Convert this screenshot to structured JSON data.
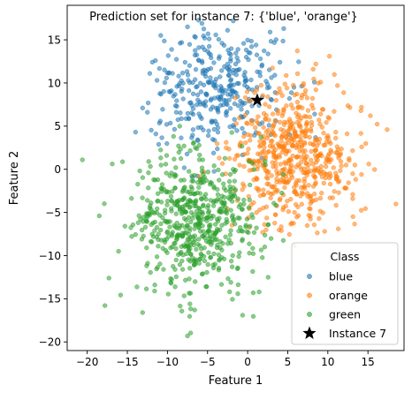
{
  "chart_data": {
    "type": "scatter",
    "title": "Prediction set for instance 7: {'blue', 'orange'}",
    "xlabel": "Feature 1",
    "ylabel": "Feature 2",
    "xlim": [
      -22.5,
      19.5
    ],
    "ylim": [
      -21,
      19
    ],
    "xticks": [
      -20,
      -15,
      -10,
      -5,
      0,
      5,
      10,
      15
    ],
    "yticks": [
      -20,
      -15,
      -10,
      -5,
      0,
      5,
      10,
      15
    ],
    "grid": false,
    "legend": {
      "title": "Class",
      "placement": "lower-right",
      "entries": [
        "blue",
        "orange",
        "green",
        "Instance 7"
      ]
    },
    "series": [
      {
        "name": "blue",
        "color": "#1f77b4",
        "cluster": {
          "center": [
            -4,
            9
          ],
          "spread": [
            4,
            3.5
          ],
          "approx_points": 300
        },
        "points": [
          [
            -7.5,
            16.5
          ],
          [
            -6.5,
            15.3
          ],
          [
            -5.7,
            16.9
          ],
          [
            -4.8,
            15.1
          ],
          [
            -3.2,
            14.6
          ],
          [
            -2.5,
            16.1
          ],
          [
            -1.2,
            13.9
          ],
          [
            0.5,
            14.2
          ],
          [
            1.6,
            12.8
          ],
          [
            2.8,
            15.9
          ],
          [
            4.5,
            16.3
          ],
          [
            -11.5,
            12.6
          ],
          [
            -12.2,
            11.1
          ],
          [
            -11.3,
            10.3
          ],
          [
            -13.1,
            7.1
          ],
          [
            -12.5,
            6.6
          ],
          [
            -10.8,
            8.7
          ],
          [
            -9.5,
            9.1
          ],
          [
            -8.6,
            10.8
          ],
          [
            -7.8,
            12.4
          ],
          [
            -7.2,
            7.7
          ],
          [
            -6.3,
            9.6
          ],
          [
            -5.4,
            11.5
          ],
          [
            -4.8,
            13.4
          ],
          [
            -4.1,
            10.1
          ],
          [
            -3.4,
            8.4
          ],
          [
            -2.9,
            11.9
          ],
          [
            -2.2,
            9.7
          ],
          [
            -1.5,
            12.2
          ],
          [
            -0.9,
            7.9
          ],
          [
            -0.3,
            10.6
          ],
          [
            0.6,
            9.2
          ],
          [
            1.2,
            11.3
          ],
          [
            2.3,
            10.2
          ],
          [
            2.9,
            8.1
          ],
          [
            -5.9,
            6.1
          ],
          [
            -4.5,
            5.6
          ],
          [
            -3.7,
            4.3
          ],
          [
            -2.6,
            6.7
          ],
          [
            -1.8,
            5.1
          ],
          [
            -8.9,
            6.6
          ],
          [
            -10.1,
            5.2
          ],
          [
            -6.8,
            4.6
          ],
          [
            -4.2,
            9.8
          ],
          [
            -3.9,
            7.1
          ],
          [
            -5.1,
            8.6
          ],
          [
            -6.1,
            12.6
          ],
          [
            -7.4,
            10.3
          ],
          [
            -2.1,
            13.3
          ],
          [
            0.1,
            12.7
          ]
        ]
      },
      {
        "name": "orange",
        "color": "#ff7f0e",
        "cluster": {
          "center": [
            6,
            1.5
          ],
          "spread": [
            4,
            4
          ],
          "approx_points": 550
        },
        "points": [
          [
            15.3,
            6.2
          ],
          [
            17.4,
            4.6
          ],
          [
            14.2,
            -0.6
          ],
          [
            13.1,
            -3.4
          ],
          [
            11.3,
            -6.9
          ],
          [
            9.6,
            -7.2
          ],
          [
            8.5,
            12.2
          ],
          [
            10.2,
            13.1
          ],
          [
            11.2,
            9.7
          ],
          [
            2.1,
            -6.4
          ],
          [
            1.5,
            -4.7
          ],
          [
            -1.2,
            1.6
          ],
          [
            -0.6,
            -1.7
          ],
          [
            0.4,
            3.9
          ],
          [
            1.3,
            6.1
          ],
          [
            2.5,
            8.4
          ],
          [
            3.8,
            6.8
          ],
          [
            4.9,
            9.4
          ],
          [
            5.6,
            5.3
          ],
          [
            6.8,
            7.1
          ],
          [
            7.9,
            4.4
          ],
          [
            9.1,
            6.4
          ],
          [
            10.2,
            3.2
          ],
          [
            11.6,
            1.8
          ],
          [
            12.4,
            4.1
          ],
          [
            3.2,
            2.5
          ],
          [
            4.1,
            0.6
          ],
          [
            5.2,
            -1.2
          ],
          [
            6.1,
            1.4
          ],
          [
            7.3,
            -0.4
          ],
          [
            8.4,
            2.2
          ],
          [
            9.5,
            -1.6
          ],
          [
            10.6,
            -3.3
          ],
          [
            3.6,
            -2.6
          ],
          [
            2.4,
            -0.2
          ],
          [
            4.8,
            3.7
          ],
          [
            6.6,
            -3.1
          ],
          [
            7.8,
            -4.6
          ],
          [
            5.1,
            -4.9
          ],
          [
            3.1,
            4.8
          ],
          [
            8.8,
            0.1
          ],
          [
            9.9,
            1.1
          ],
          [
            11.1,
            -1.1
          ],
          [
            12.3,
            -2.2
          ],
          [
            2.2,
            1.6
          ],
          [
            1.1,
            -2.2
          ],
          [
            5.9,
            4.1
          ],
          [
            7.1,
            3.1
          ],
          [
            4.3,
            -0.1
          ],
          [
            6.4,
            2.6
          ]
        ]
      },
      {
        "name": "green",
        "color": "#2ca02c",
        "cluster": {
          "center": [
            -6.5,
            -6
          ],
          "spread": [
            4,
            4
          ],
          "approx_points": 550
        },
        "points": [
          [
            -20.6,
            1.1
          ],
          [
            -18.5,
            -5.4
          ],
          [
            -17.3,
            -12.6
          ],
          [
            -16.1,
            -9.5
          ],
          [
            -15.3,
            -6.6
          ],
          [
            -13.2,
            -8.1
          ],
          [
            -12.5,
            -3.6
          ],
          [
            -11.2,
            -1.2
          ],
          [
            -10.1,
            1.6
          ],
          [
            -9.1,
            -0.6
          ],
          [
            -13.1,
            -16.6
          ],
          [
            -11.6,
            -14.1
          ],
          [
            -10.5,
            -11.6
          ],
          [
            -9.6,
            -13.1
          ],
          [
            -8.3,
            -9.6
          ],
          [
            -7.2,
            -15.6
          ],
          [
            -6.6,
            -16.3
          ],
          [
            -7.5,
            -19.3
          ],
          [
            -5.1,
            -13.6
          ],
          [
            -4.3,
            -11.1
          ],
          [
            -2.1,
            -13.1
          ],
          [
            -1.1,
            -10.1
          ],
          [
            0.3,
            -6.6
          ],
          [
            -3.2,
            -3.1
          ],
          [
            -4.5,
            -1.6
          ],
          [
            -5.6,
            1.1
          ],
          [
            -6.7,
            3.1
          ],
          [
            -8.1,
            -2.6
          ],
          [
            -9.1,
            -4.1
          ],
          [
            -10.6,
            -5.6
          ],
          [
            -11.6,
            -7.1
          ],
          [
            -12.6,
            -9.1
          ],
          [
            -8.6,
            -7.6
          ],
          [
            -7.1,
            -6.1
          ],
          [
            -6.1,
            -8.1
          ],
          [
            -5.1,
            -5.6
          ],
          [
            -4.1,
            -7.6
          ],
          [
            -3.1,
            -8.6
          ],
          [
            -2.6,
            -5.1
          ],
          [
            -1.6,
            -3.1
          ],
          [
            -6.6,
            -10.6
          ],
          [
            -5.6,
            -12.1
          ],
          [
            -9.6,
            -9.1
          ],
          [
            -4.6,
            -3.6
          ],
          [
            -7.6,
            -4.1
          ],
          [
            -3.6,
            -9.9
          ],
          [
            -2.1,
            -7.1
          ],
          [
            -8.1,
            -11.6
          ],
          [
            -6.1,
            -2.1
          ],
          [
            -10.1,
            -8.1
          ]
        ]
      }
    ],
    "highlight": {
      "name": "Instance 7",
      "x": 1.2,
      "y": 8,
      "marker": "star",
      "color": "#000000"
    }
  }
}
